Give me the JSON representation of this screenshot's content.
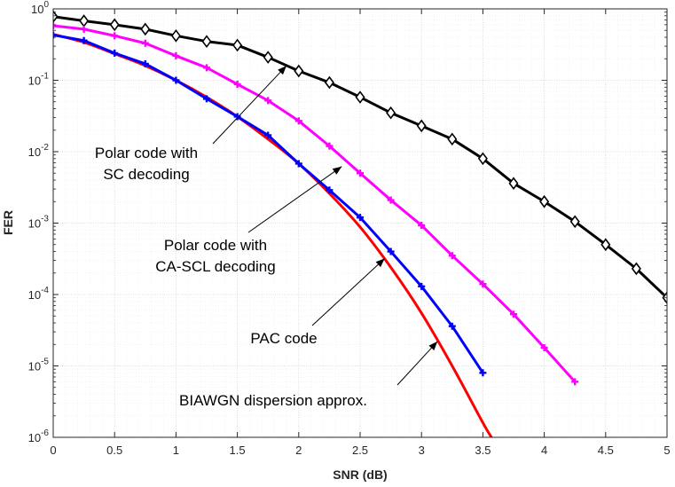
{
  "chart_data": {
    "type": "line",
    "title": "",
    "xlabel": "SNR (dB)",
    "ylabel": "FER",
    "xlim": [
      0,
      5
    ],
    "ylim": [
      1e-06,
      1
    ],
    "yscale": "log",
    "grid": true,
    "x_ticks": [
      "0",
      "0.5",
      "1",
      "1.5",
      "2",
      "2.5",
      "3",
      "3.5",
      "4",
      "4.5",
      "5"
    ],
    "y_ticks": [
      {
        "base": "10",
        "exp": "0"
      },
      {
        "base": "10",
        "exp": "-1"
      },
      {
        "base": "10",
        "exp": "-2"
      },
      {
        "base": "10",
        "exp": "-3"
      },
      {
        "base": "10",
        "exp": "-4"
      },
      {
        "base": "10",
        "exp": "-5"
      },
      {
        "base": "10",
        "exp": "-6"
      }
    ],
    "series": [
      {
        "name": "Polar code with SC decoding",
        "color": "#000000",
        "marker": "diamond",
        "x": [
          0,
          0.25,
          0.5,
          0.75,
          1,
          1.25,
          1.5,
          1.75,
          2,
          2.25,
          2.5,
          2.75,
          3,
          3.25,
          3.5,
          3.75,
          4,
          4.25,
          4.5,
          4.75,
          5
        ],
        "y": [
          0.78,
          0.68,
          0.6,
          0.52,
          0.42,
          0.35,
          0.31,
          0.21,
          0.135,
          0.093,
          0.058,
          0.035,
          0.023,
          0.015,
          0.008,
          0.0036,
          0.002,
          0.00105,
          0.0005,
          0.00023,
          9e-05
        ]
      },
      {
        "name": "Polar code with CA-SCL decoding",
        "color": "#ff00ff",
        "marker": "plus",
        "x": [
          0,
          0.25,
          0.5,
          0.75,
          1,
          1.25,
          1.5,
          1.75,
          2,
          2.25,
          2.5,
          2.75,
          3,
          3.25,
          3.5,
          3.75,
          4,
          4.25
        ],
        "y": [
          0.58,
          0.52,
          0.42,
          0.33,
          0.22,
          0.15,
          0.088,
          0.052,
          0.027,
          0.012,
          0.005,
          0.0021,
          0.00093,
          0.00035,
          0.00014,
          5.3e-05,
          1.8e-05,
          6e-06
        ]
      },
      {
        "name": "PAC code",
        "color": "#0000ff",
        "marker": "plus",
        "x": [
          0,
          0.25,
          0.5,
          0.75,
          1,
          1.25,
          1.5,
          1.75,
          2,
          2.25,
          2.5,
          2.75,
          3,
          3.25,
          3.5
        ],
        "y": [
          0.43,
          0.36,
          0.24,
          0.17,
          0.1,
          0.055,
          0.031,
          0.017,
          0.0068,
          0.0029,
          0.0012,
          0.0004,
          0.00013,
          3.6e-05,
          8e-06
        ]
      },
      {
        "name": "BIAWGN dispersion approx.",
        "color": "#ff0000",
        "marker": "none",
        "x": [
          0,
          0.25,
          0.5,
          0.75,
          1,
          1.25,
          1.5,
          1.75,
          2,
          2.25,
          2.5,
          2.75,
          3,
          3.25,
          3.5,
          3.57
        ],
        "y": [
          0.44,
          0.34,
          0.235,
          0.16,
          0.1,
          0.058,
          0.031,
          0.015,
          0.0068,
          0.0026,
          0.00088,
          0.00024,
          5.5e-05,
          1e-05,
          1.6e-06,
          1e-06
        ]
      }
    ],
    "annotations": [
      {
        "lines": [
          "Polar code with",
          "SC decoding"
        ],
        "target_series": "Polar code with SC decoding",
        "arrow_to": [
          1.9,
          0.16
        ]
      },
      {
        "lines": [
          "Polar code with",
          "CA-SCL decoding"
        ],
        "target_series": "Polar code with CA-SCL decoding",
        "arrow_to": [
          2.35,
          0.0062
        ]
      },
      {
        "lines": [
          "PAC code"
        ],
        "target_series": "PAC code",
        "arrow_to": [
          2.7,
          0.00032
        ]
      },
      {
        "lines": [
          "BIAWGN dispersion approx."
        ],
        "target_series": "BIAWGN dispersion approx.",
        "arrow_to": [
          3.13,
          2.2e-05
        ]
      }
    ]
  }
}
